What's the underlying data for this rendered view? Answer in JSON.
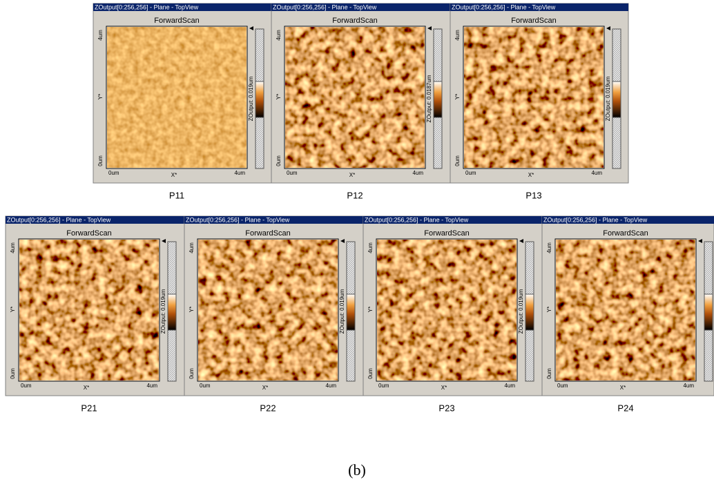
{
  "panels": [
    {
      "title": "ZOutput[0:256,256] - Plane - TopView",
      "scan": "ForwardScan",
      "y_top": "4um",
      "y_bottom": "0um",
      "y_label": "Y*",
      "x_left": "0um",
      "x_right": "4um",
      "x_label": "X*",
      "colorbar_label": "ZOutput: 0.019um",
      "caption": "P11"
    },
    {
      "title": "ZOutput[0:256,256] - Plane - TopView",
      "scan": "ForwardScan",
      "y_top": "4um",
      "y_bottom": "0um",
      "y_label": "Y*",
      "x_left": "0um",
      "x_right": "4um",
      "x_label": "X*",
      "colorbar_label": "ZOutput: 0.0187um",
      "caption": "P12"
    },
    {
      "title": "ZOutput[0:256,256] - Plane - TopView",
      "scan": "ForwardScan",
      "y_top": "4um",
      "y_bottom": "0um",
      "y_label": "Y*",
      "x_left": "0um",
      "x_right": "4um",
      "x_label": "X*",
      "colorbar_label": "ZOutput: 0.019um",
      "caption": "P13"
    },
    {
      "title": "ZOutput[0:256,256] - Plane - TopView",
      "scan": "ForwardScan",
      "y_top": "4um",
      "y_bottom": "0um",
      "y_label": "Y*",
      "x_left": "0um",
      "x_right": "4um",
      "x_label": "X*",
      "colorbar_label": "ZOutput: 0.019um",
      "caption": "P21"
    },
    {
      "title": "ZOutput[0:256,256] - Plane - TopView",
      "scan": "ForwardScan",
      "y_top": "4um",
      "y_bottom": "0um",
      "y_label": "Y*",
      "x_left": "0um",
      "x_right": "4um",
      "x_label": "X*",
      "colorbar_label": "ZOutput: 0.019um",
      "caption": "P22"
    },
    {
      "title": "ZOutput[0:256,256] - Plane - TopView",
      "scan": "ForwardScan",
      "y_top": "4um",
      "y_bottom": "0um",
      "y_label": "Y*",
      "x_left": "0um",
      "x_right": "4um",
      "x_label": "X*",
      "colorbar_label": "ZOutput: 0.019um",
      "caption": "P23"
    },
    {
      "title": "ZOutput[0:256,256] - Plane - TopView",
      "scan": "ForwardScan",
      "y_top": "4um",
      "y_bottom": "0um",
      "y_label": "Y*",
      "x_left": "0um",
      "x_right": "4um",
      "x_label": "X*",
      "caption": "P24"
    }
  ],
  "figure_label": "(b)"
}
